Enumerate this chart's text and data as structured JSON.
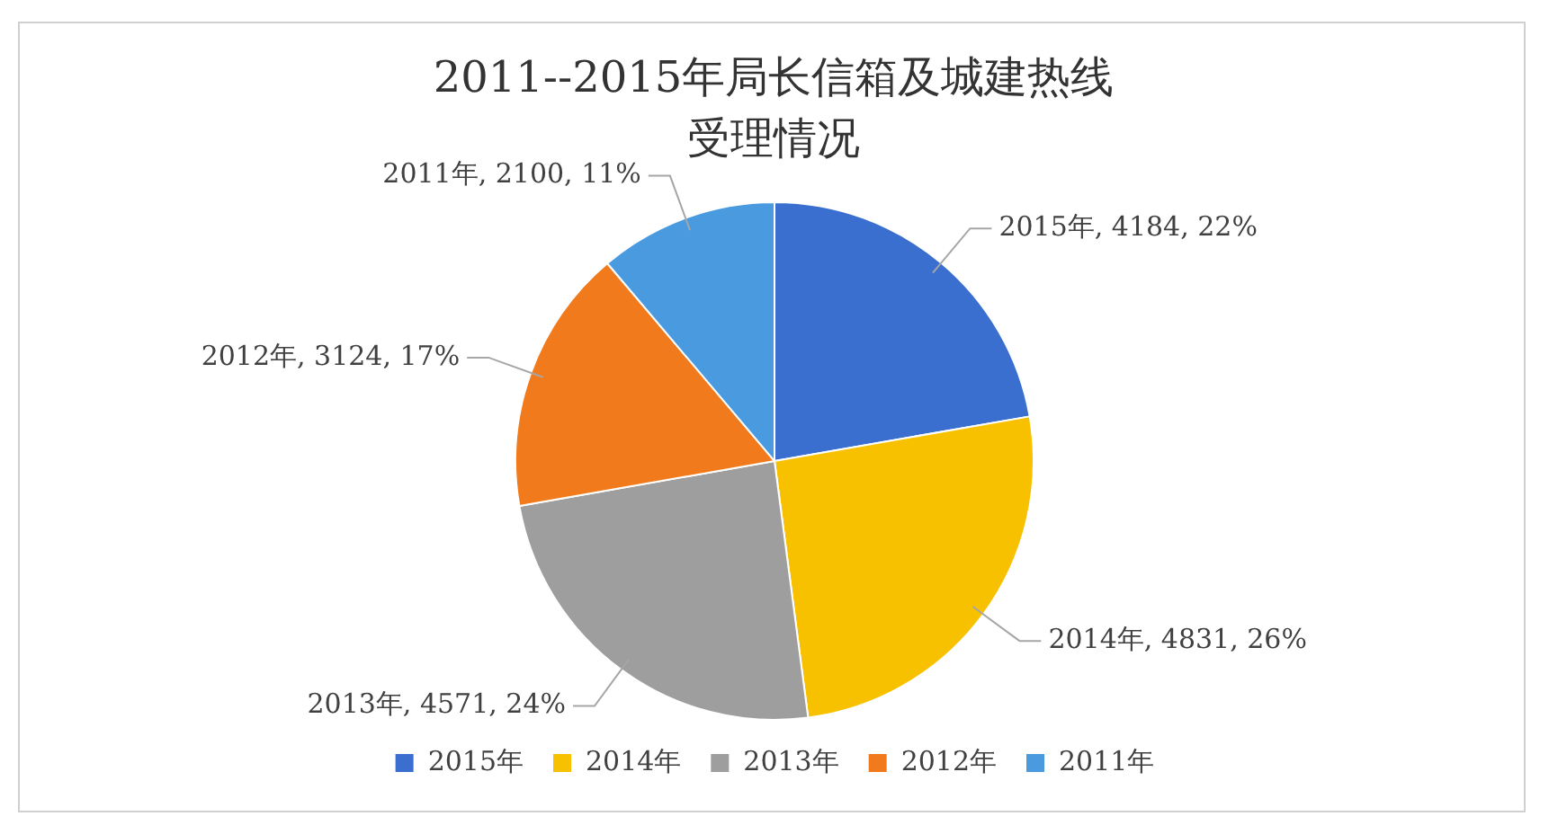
{
  "chart_data": {
    "type": "pie",
    "title": "2011--2015年局长信箱及城建热线受理情况",
    "categories": [
      "2015年",
      "2014年",
      "2013年",
      "2012年",
      "2011年"
    ],
    "values": [
      4184,
      4831,
      4571,
      3124,
      2100
    ],
    "colors": [
      "#3a6fd0",
      "#f7c100",
      "#9e9e9e",
      "#f07a1c",
      "#4a9ae0"
    ],
    "value_labels": [
      "2015年, 4184, 22%",
      "2014年, 4831, 26%",
      "2013年, 4571, 24%",
      "2012年, 3124, 17%",
      "2011年, 2100, 11%"
    ],
    "legend": "bottom"
  }
}
